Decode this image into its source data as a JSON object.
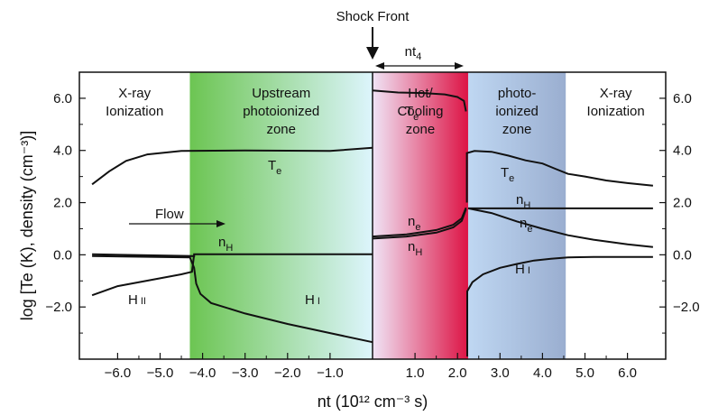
{
  "chart_data": {
    "type": "line",
    "title": "",
    "xlabel": "nt (10¹² cm⁻³ s)",
    "ylabel": "log [Te (K), density (cm⁻³)]",
    "xlim": [
      -6.9,
      6.9
    ],
    "ylim": [
      -4.0,
      7.0
    ],
    "x_ticks": [
      -6.0,
      -5.0,
      -4.0,
      -3.0,
      -2.0,
      -1.0,
      1.0,
      2.0,
      3.0,
      4.0,
      5.0,
      6.0
    ],
    "x_tick_labels": [
      "−6.0",
      "−5.0",
      "−4.0",
      "−3.0",
      "−2.0",
      "−1.0",
      "1.0",
      "2.0",
      "3.0",
      "4.0",
      "5.0",
      "6.0"
    ],
    "y_ticks": [
      -2.0,
      0.0,
      2.0,
      4.0,
      6.0
    ],
    "y_tick_labels": [
      "−2.0",
      "0.0",
      "2.0",
      "4.0",
      "6.0"
    ],
    "grid": false,
    "zones": [
      {
        "label": "X-ray\nIonization",
        "x0": -6.9,
        "x1": -4.3,
        "colors": [
          "#ffffff",
          "#ffffff"
        ]
      },
      {
        "label": "Upstream\nphotoionized\nzone",
        "x0": -4.3,
        "x1": 0.0,
        "colors": [
          "#6cc552",
          "#ddf5fd"
        ]
      },
      {
        "label": "Hot/\nCooling\nzone",
        "x0": 0.0,
        "x1": 2.25,
        "colors": [
          "#f0e4f6",
          "#dd1445"
        ]
      },
      {
        "label": "photo-\nionized\nzone",
        "x0": 2.25,
        "x1": 4.55,
        "colors": [
          "#bfd7f2",
          "#9aaed0"
        ]
      },
      {
        "label": "X-ray\nIonization",
        "x0": 4.55,
        "x1": 6.9,
        "colors": [
          "#ffffff",
          "#ffffff"
        ]
      }
    ],
    "series": [
      {
        "name": "Te",
        "x": [
          -6.6,
          -6.2,
          -5.8,
          -5.3,
          -4.5,
          -3.0,
          -1.0,
          0.0
        ],
        "y": [
          2.7,
          3.2,
          3.6,
          3.85,
          3.98,
          4.0,
          3.98,
          4.1
        ]
      },
      {
        "name": "nH",
        "x": [
          -6.6,
          -4.2,
          -4.2,
          0.0
        ],
        "y": [
          0.02,
          -0.05,
          0.02,
          0.02
        ]
      },
      {
        "name": "H II",
        "x": [
          -6.6,
          -6.0,
          -5.0,
          -4.5,
          -4.25,
          -4.2
        ],
        "y": [
          -1.55,
          -1.2,
          -0.9,
          -0.75,
          -0.65,
          0.0
        ]
      },
      {
        "name": "H I",
        "x": [
          -6.6,
          -4.3,
          -4.2,
          -4.15,
          -4.05,
          -3.8,
          -3.0,
          -2.0,
          -1.0,
          0.0
        ],
        "y": [
          -0.05,
          -0.1,
          -0.5,
          -1.1,
          -1.5,
          -1.85,
          -2.25,
          -2.65,
          -3.0,
          -3.35
        ]
      },
      {
        "name": "Te (hot)",
        "x": [
          0.0,
          0.6,
          1.2,
          1.7,
          2.0,
          2.1,
          2.15,
          2.2
        ],
        "y": [
          6.3,
          6.22,
          6.2,
          6.15,
          6.05,
          5.95,
          5.9,
          5.5
        ]
      },
      {
        "name": "ne (hot)",
        "x": [
          0.0,
          0.8,
          1.5,
          1.9,
          2.1,
          2.2
        ],
        "y": [
          0.7,
          0.78,
          0.95,
          1.15,
          1.4,
          1.8
        ]
      },
      {
        "name": "nH (hot)",
        "x": [
          0.0,
          0.8,
          1.5,
          1.9,
          2.1,
          2.2
        ],
        "y": [
          0.62,
          0.7,
          0.85,
          1.05,
          1.3,
          1.75
        ]
      },
      {
        "name": "Te (photo)",
        "x": [
          2.22,
          2.22,
          2.4,
          2.8,
          3.2,
          3.6,
          4.0,
          4.3,
          4.6,
          5.0,
          5.5,
          6.0,
          6.6
        ],
        "y": [
          2.0,
          3.9,
          3.98,
          3.95,
          3.8,
          3.62,
          3.5,
          3.3,
          3.1,
          3.0,
          2.85,
          2.75,
          2.65
        ]
      },
      {
        "name": "nH (photo)",
        "x": [
          2.25,
          4.5,
          6.6
        ],
        "y": [
          1.78,
          1.78,
          1.78
        ]
      },
      {
        "name": "ne (photo)",
        "x": [
          2.25,
          2.8,
          3.4,
          4.0,
          4.6,
          5.2,
          6.0,
          6.6
        ],
        "y": [
          1.78,
          1.6,
          1.28,
          1.0,
          0.75,
          0.58,
          0.4,
          0.3
        ]
      },
      {
        "name": "H I (photo)",
        "x": [
          2.23,
          2.23,
          2.35,
          2.6,
          3.0,
          3.4,
          3.8,
          4.2,
          4.6,
          5.2,
          6.6
        ],
        "y": [
          -3.9,
          -1.4,
          -1.05,
          -0.75,
          -0.5,
          -0.35,
          -0.22,
          -0.15,
          -0.1,
          -0.08,
          -0.08
        ]
      }
    ],
    "annotations": {
      "shock_front": "Shock Front",
      "nt4": "nt",
      "nt4_sub": "4",
      "flow": "Flow",
      "te_main": "T",
      "te_sub": "e",
      "nh_main": "n",
      "nh_sub": "H",
      "ne_main": "n",
      "ne_sub": "e",
      "hii_main": "H",
      "hii_roman": "II",
      "hi_main": "H",
      "hi_roman": "I"
    }
  }
}
